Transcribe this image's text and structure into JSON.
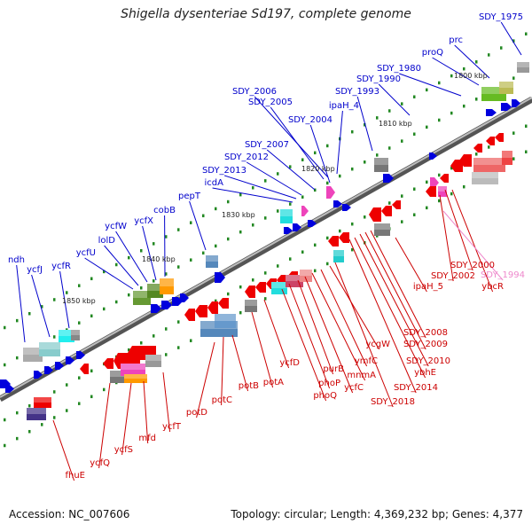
{
  "title": "Shigella dysenteriae Sd197, complete genome",
  "footer": {
    "accession": "Accession: NC_007606",
    "stats": "Topology: circular; Length: 4,369,232 bp; Genes: 4,377"
  },
  "colors": {
    "plus_label": "#0000cc",
    "minus_label": "#cc0000",
    "pink_label": "#ee88cc",
    "backbone": "#666666",
    "tick": "#228822"
  },
  "scale_labels": [
    "1800 kbp",
    "1810 kbp",
    "1820 kbp",
    "1830 kbp",
    "1840 kbp",
    "1850 kbp"
  ],
  "plus_strand_genes": [
    "SDY_1975",
    "prc",
    "proQ",
    "SDY_1980",
    "SDY_1990",
    "SDY_1993",
    "ipaH_4",
    "SDY_2006",
    "SDY_2005",
    "SDY_2004",
    "SDY_2007",
    "SDY_2012",
    "SDY_2013",
    "icdA",
    "pepT",
    "cobB",
    "ycfX",
    "ycfW",
    "lolD",
    "ycfU",
    "ndh",
    "ycfJ",
    "ycfR"
  ],
  "minus_strand_genes": [
    "SDY_2000",
    "SDY_2002",
    "ybcR",
    "ipaH_5",
    "SDY_2008",
    "SDY_2009",
    "SDY_2010",
    "ybhE",
    "SDY_2014",
    "SDY_2018",
    "ycgW",
    "ymfC",
    "mnmA",
    "ycfC",
    "purB",
    "phoP",
    "phoQ",
    "ycfD",
    "potA",
    "potB",
    "potC",
    "potD",
    "ycfT",
    "mfd",
    "ycfS",
    "ycfQ",
    "fhuE"
  ],
  "pink_genes": [
    "SDY_1994"
  ]
}
